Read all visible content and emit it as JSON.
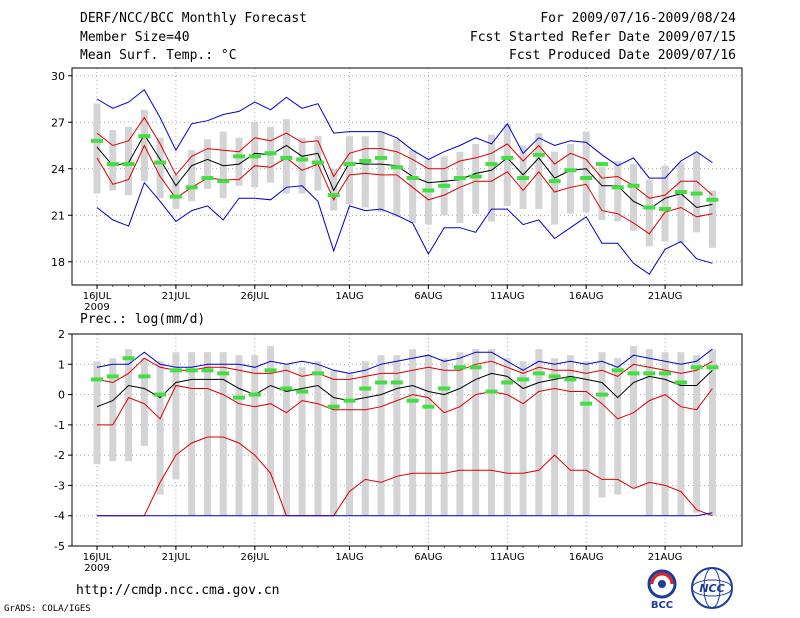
{
  "header": {
    "line1": "DERF/NCC/BCC Monthly Forecast",
    "line2": "Member Size=40",
    "line3": "Mean Surf. Temp.: °C",
    "right1": "For 2009/07/16-2009/08/24",
    "right2": "Fcst Started Refer Date 2009/07/15",
    "right3": "Fcst Produced Date 2009/07/16"
  },
  "footer": {
    "url": "http://cmdp.ncc.cma.gov.cn",
    "credit": "GrADS: COLA/IGES",
    "logo_bcc": "BCC",
    "logo_ncc": "NCC"
  },
  "colors": {
    "min_max": "#0000cc",
    "quartile": "#dd0000",
    "median": "#000000",
    "box": "#d4d4d6",
    "obs": "#44dd44"
  },
  "chart_data": [
    {
      "type": "line",
      "title": "Mean Surf. Temp.: °C",
      "x_tick_labels": [
        "16JUL",
        "21JUL",
        "26JUL",
        "1AUG",
        "6AUG",
        "11AUG",
        "16AUG",
        "21AUG"
      ],
      "x_tick_days": [
        1,
        6,
        11,
        17,
        22,
        27,
        32,
        37
      ],
      "x_year_label": "2009",
      "ylim": [
        16.5,
        30.5
      ],
      "y_ticks": [
        18,
        21,
        24,
        27,
        30
      ],
      "x": [
        1,
        2,
        3,
        4,
        5,
        6,
        7,
        8,
        9,
        10,
        11,
        12,
        13,
        14,
        15,
        16,
        17,
        18,
        19,
        20,
        21,
        22,
        23,
        24,
        25,
        26,
        27,
        28,
        29,
        30,
        31,
        32,
        33,
        34,
        35,
        36,
        37,
        38,
        39,
        40
      ],
      "series": [
        {
          "name": "Max",
          "values": [
            28.5,
            27.9,
            28.3,
            29.1,
            27.3,
            25.2,
            26.9,
            27.1,
            27.5,
            27.7,
            28.3,
            27.8,
            28.6,
            27.9,
            28.2,
            26.3,
            26.4,
            26.4,
            26.4,
            26.0,
            25.2,
            24.6,
            25.1,
            25.5,
            26.0,
            25.6,
            26.9,
            25.0,
            26.0,
            25.5,
            25.8,
            25.7,
            24.9,
            24.2,
            24.7,
            23.4,
            23.4,
            24.5,
            25.1,
            24.4
          ]
        },
        {
          "name": "Q3",
          "values": [
            26.3,
            25.5,
            25.8,
            27.3,
            25.6,
            23.6,
            24.8,
            25.3,
            25.2,
            25.1,
            26.0,
            25.8,
            26.3,
            25.7,
            25.8,
            23.5,
            25.0,
            25.3,
            25.3,
            25.1,
            24.6,
            24.0,
            24.0,
            24.5,
            24.7,
            25.0,
            25.6,
            24.5,
            25.5,
            24.3,
            25.0,
            24.6,
            23.4,
            23.5,
            22.9,
            22.1,
            22.3,
            23.2,
            23.2,
            22.3
          ]
        },
        {
          "name": "Median",
          "values": [
            25.4,
            24.2,
            24.4,
            26.2,
            24.6,
            22.9,
            24.2,
            24.6,
            24.2,
            24.3,
            25.0,
            24.9,
            25.5,
            24.8,
            25.0,
            22.6,
            24.4,
            24.3,
            24.3,
            24.2,
            23.5,
            23.1,
            23.2,
            23.3,
            23.7,
            23.9,
            24.7,
            23.6,
            24.7,
            23.4,
            23.9,
            24.0,
            22.9,
            22.9,
            21.9,
            21.4,
            22.1,
            22.4,
            21.5,
            21.7
          ]
        },
        {
          "name": "Q1",
          "values": [
            24.7,
            23.0,
            23.3,
            25.5,
            23.5,
            22.1,
            22.8,
            23.4,
            23.3,
            23.3,
            24.2,
            24.1,
            24.7,
            23.9,
            24.3,
            22.0,
            23.6,
            23.7,
            23.6,
            23.6,
            22.8,
            22.0,
            22.3,
            22.8,
            23.2,
            23.2,
            23.8,
            22.6,
            23.8,
            22.5,
            22.8,
            23.0,
            21.3,
            21.1,
            20.5,
            19.8,
            21.2,
            21.5,
            20.9,
            21.1
          ]
        },
        {
          "name": "Min",
          "values": [
            21.5,
            20.7,
            20.3,
            23.1,
            21.9,
            20.6,
            21.3,
            21.6,
            20.7,
            22.1,
            22.1,
            22.0,
            22.8,
            22.9,
            21.9,
            18.7,
            21.6,
            21.3,
            21.4,
            21.0,
            20.5,
            18.5,
            20.2,
            20.2,
            19.9,
            21.4,
            21.4,
            20.4,
            20.7,
            19.5,
            20.2,
            20.9,
            19.2,
            19.2,
            17.9,
            17.2,
            18.8,
            19.3,
            18.2,
            17.9
          ]
        }
      ],
      "boxes": [
        [
          22.4,
          28.2
        ],
        [
          22.6,
          26.5
        ],
        [
          22.3,
          26.7
        ],
        [
          23.2,
          27.8
        ],
        [
          22.1,
          26.0
        ],
        [
          21.4,
          23.6
        ],
        [
          21.9,
          25.2
        ],
        [
          22.7,
          25.9
        ],
        [
          22.1,
          26.4
        ],
        [
          22.9,
          26.0
        ],
        [
          22.8,
          27.0
        ],
        [
          23.1,
          26.7
        ],
        [
          22.4,
          27.2
        ],
        [
          22.4,
          26.0
        ],
        [
          22.6,
          26.1
        ],
        [
          21.3,
          24.0
        ],
        [
          21.7,
          26.1
        ],
        [
          21.5,
          26.1
        ],
        [
          21.2,
          26.4
        ],
        [
          20.9,
          25.9
        ],
        [
          20.5,
          25.2
        ],
        [
          20.4,
          24.6
        ],
        [
          21.0,
          24.8
        ],
        [
          20.5,
          25.1
        ],
        [
          21.1,
          25.6
        ],
        [
          20.6,
          26.2
        ],
        [
          21.6,
          26.9
        ],
        [
          21.4,
          25.5
        ],
        [
          21.4,
          26.3
        ],
        [
          20.4,
          25.1
        ],
        [
          21.1,
          25.6
        ],
        [
          21.2,
          26.4
        ],
        [
          20.7,
          24.1
        ],
        [
          20.6,
          24.5
        ],
        [
          20.0,
          24.3
        ],
        [
          19.0,
          23.3
        ],
        [
          19.3,
          24.2
        ],
        [
          19.2,
          24.4
        ],
        [
          19.9,
          25.0
        ],
        [
          18.9,
          22.6
        ]
      ],
      "obs": [
        25.8,
        24.3,
        24.3,
        26.1,
        24.4,
        22.2,
        22.8,
        23.4,
        23.2,
        24.8,
        24.8,
        25.0,
        24.7,
        24.6,
        24.4,
        22.3,
        24.3,
        24.5,
        24.7,
        24.1,
        23.4,
        22.6,
        22.9,
        23.4,
        23.5,
        24.3,
        24.7,
        23.4,
        24.9,
        23.2,
        23.9,
        23.4,
        24.3,
        22.8,
        22.9,
        21.5,
        21.4,
        22.5,
        22.4,
        22.0
      ]
    },
    {
      "type": "line",
      "title": "Prec.: log(mm/d)",
      "x_tick_labels": [
        "16JUL",
        "21JUL",
        "26JUL",
        "1AUG",
        "6AUG",
        "11AUG",
        "16AUG",
        "21AUG"
      ],
      "x_tick_days": [
        1,
        6,
        11,
        17,
        22,
        27,
        32,
        37
      ],
      "x_year_label": "2009",
      "ylim": [
        -5,
        2
      ],
      "y_ticks": [
        -5,
        -4,
        -3,
        -2,
        -1,
        0,
        1,
        2
      ],
      "x": [
        1,
        2,
        3,
        4,
        5,
        6,
        7,
        8,
        9,
        10,
        11,
        12,
        13,
        14,
        15,
        16,
        17,
        18,
        19,
        20,
        21,
        22,
        23,
        24,
        25,
        26,
        27,
        28,
        29,
        30,
        31,
        32,
        33,
        34,
        35,
        36,
        37,
        38,
        39,
        40
      ],
      "series": [
        {
          "name": "Max",
          "values": [
            0.9,
            1.0,
            1.0,
            1.4,
            1.0,
            0.9,
            0.9,
            1.0,
            1.0,
            1.0,
            0.9,
            1.1,
            1.0,
            1.1,
            1.0,
            0.8,
            0.7,
            0.8,
            1.0,
            1.1,
            1.2,
            1.3,
            1.1,
            1.2,
            1.4,
            1.4,
            1.1,
            0.8,
            1.1,
            1.0,
            1.1,
            1.0,
            1.1,
            0.9,
            1.3,
            1.2,
            1.1,
            1.0,
            1.1,
            1.5
          ]
        },
        {
          "name": "Q3",
          "values": [
            0.5,
            0.4,
            0.7,
            1.2,
            0.9,
            0.8,
            0.8,
            0.9,
            0.9,
            0.8,
            0.7,
            0.7,
            0.8,
            0.6,
            0.7,
            0.5,
            0.5,
            0.6,
            0.7,
            0.7,
            0.8,
            0.9,
            0.8,
            0.8,
            1.0,
            1.1,
            0.9,
            0.7,
            0.9,
            0.8,
            0.8,
            0.7,
            0.8,
            0.6,
            1.0,
            0.9,
            0.8,
            0.7,
            0.8,
            1.1
          ]
        },
        {
          "name": "Median",
          "values": [
            -0.4,
            -0.2,
            0.3,
            0.2,
            -0.1,
            0.4,
            0.5,
            0.5,
            0.5,
            0.2,
            0.0,
            0.3,
            0.1,
            0.2,
            0.3,
            -0.1,
            -0.2,
            -0.1,
            0.0,
            0.2,
            0.3,
            0.1,
            0.0,
            0.2,
            0.5,
            0.7,
            0.6,
            0.2,
            0.4,
            0.5,
            0.6,
            0.5,
            0.4,
            -0.1,
            0.4,
            0.6,
            0.5,
            0.3,
            0.3,
            0.8
          ]
        },
        {
          "name": "Q1",
          "values": [
            -1.0,
            -1.0,
            -0.1,
            -0.3,
            -0.8,
            0.3,
            0.2,
            0.2,
            0.0,
            -0.3,
            -0.4,
            -0.3,
            -0.6,
            -0.2,
            -0.3,
            -0.5,
            -0.5,
            -0.5,
            -0.4,
            -0.2,
            0.0,
            -0.1,
            -0.6,
            -0.4,
            0.0,
            0.1,
            0.0,
            -0.3,
            0.1,
            0.2,
            0.1,
            0.1,
            -0.3,
            -0.8,
            -0.6,
            -0.2,
            0.0,
            -0.4,
            -0.5,
            0.2
          ]
        },
        {
          "name": "Q1_low",
          "values": [
            -4,
            -4,
            -4,
            -4,
            -2.9,
            -2.0,
            -1.6,
            -1.4,
            -1.4,
            -1.6,
            -2.0,
            -2.6,
            -4,
            -4,
            -4,
            -4,
            -3.2,
            -2.8,
            -2.9,
            -2.7,
            -2.6,
            -2.6,
            -2.6,
            -2.5,
            -2.5,
            -2.5,
            -2.6,
            -2.6,
            -2.5,
            -2.0,
            -2.5,
            -2.5,
            -2.8,
            -2.8,
            -3.1,
            -2.9,
            -3.0,
            -3.2,
            -3.8,
            -4.0
          ]
        },
        {
          "name": "Min",
          "values": [
            -4,
            -4,
            -4,
            -4,
            -4,
            -4,
            -4,
            -4,
            -4,
            -4,
            -4,
            -4,
            -4,
            -4,
            -4,
            -4,
            -4,
            -4,
            -4,
            -4,
            -4,
            -4,
            -4,
            -4,
            -4,
            -4,
            -4,
            -4,
            -4,
            -4,
            -4,
            -4,
            -4,
            -4,
            -4,
            -4,
            -4,
            -4,
            -4,
            -3.9
          ]
        }
      ],
      "boxes": [
        [
          -2.3,
          1.1
        ],
        [
          -2.2,
          1.2
        ],
        [
          -2.2,
          1.5
        ],
        [
          -1.7,
          1.2
        ],
        [
          -3.3,
          1.1
        ],
        [
          -2.8,
          1.4
        ],
        [
          -4,
          1.4
        ],
        [
          -4,
          1.4
        ],
        [
          -4,
          1.4
        ],
        [
          -4,
          1.3
        ],
        [
          -4,
          1.3
        ],
        [
          -4,
          1.6
        ],
        [
          -4,
          1.0
        ],
        [
          -4,
          0.9
        ],
        [
          -4,
          1.1
        ],
        [
          -4,
          0.8
        ],
        [
          -4,
          0.7
        ],
        [
          -4,
          1.1
        ],
        [
          -4,
          1.3
        ],
        [
          -4,
          1.3
        ],
        [
          -4,
          1.5
        ],
        [
          -4,
          1.3
        ],
        [
          -4,
          1.2
        ],
        [
          -4,
          1.4
        ],
        [
          -4,
          1.5
        ],
        [
          -4,
          1.5
        ],
        [
          -4,
          1.2
        ],
        [
          -4,
          1.1
        ],
        [
          -4,
          1.5
        ],
        [
          -4,
          1.2
        ],
        [
          -4,
          1.3
        ],
        [
          -4,
          1.1
        ],
        [
          -3.4,
          1.4
        ],
        [
          -3.3,
          1.2
        ],
        [
          -3.1,
          1.6
        ],
        [
          -4,
          1.5
        ],
        [
          -4,
          1.4
        ],
        [
          -4,
          1.4
        ],
        [
          -3.9,
          1.3
        ],
        [
          -4,
          1.5
        ]
      ],
      "obs": [
        0.5,
        0.6,
        1.2,
        0.6,
        0.0,
        0.8,
        0.8,
        0.8,
        0.7,
        -0.1,
        0.0,
        0.8,
        0.2,
        0.1,
        0.7,
        -0.4,
        -0.2,
        0.2,
        0.4,
        0.4,
        -0.2,
        -0.4,
        0.2,
        0.9,
        0.9,
        0.1,
        0.4,
        0.5,
        0.7,
        0.6,
        0.5,
        -0.3,
        0.0,
        0.8,
        0.7,
        0.7,
        0.7,
        0.4,
        0.9,
        0.9
      ]
    }
  ]
}
